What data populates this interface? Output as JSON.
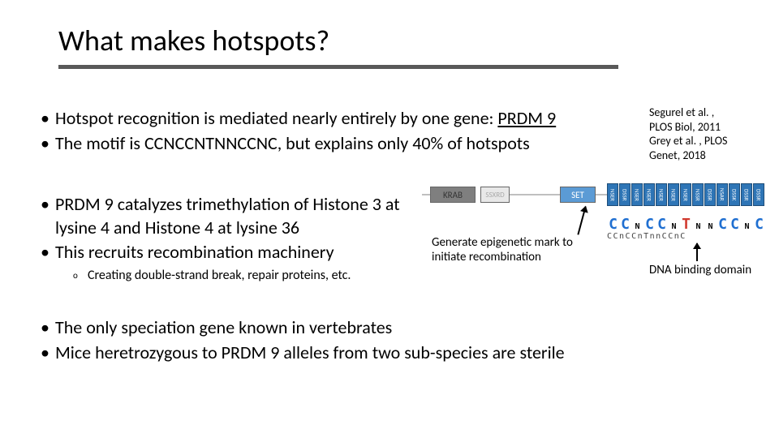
{
  "title": "What makes hotspots?",
  "citations": {
    "line1": "Segurel et al. ,",
    "line2": "PLOS Biol, 2011",
    "line3": "Grey et al. , PLOS",
    "line4": "Genet, 2018"
  },
  "section1": {
    "b1_pre": "Hotspot recognition is mediated nearly entirely by one gene: ",
    "b1_gene": "PRDM 9",
    "b2": "The motif is CCNCCNTNNCCNC, but explains only 40% of hotspots"
  },
  "section2": {
    "b1": "PRDM 9 catalyzes trimethylation of Histone 3 at lysine 4 and Histone 4 at lysine 36",
    "b2": "This recruits recombination machinery",
    "sub1": "Creating double-strand break, repair proteins, etc."
  },
  "diagram": {
    "krab": "KRAB",
    "ssxrd": "SSXRD",
    "set": "SET",
    "zf_labels": [
      "NSER",
      "DSSR",
      "NSER",
      "NSER",
      "NSER",
      "NSER",
      "NSER",
      "NSSR",
      "DSSR",
      "NSAR",
      "DSSK",
      "DSSR",
      "DSSR"
    ],
    "logo_letters": [
      "C",
      "C",
      "n",
      "C",
      "C",
      "n",
      "T",
      "n",
      "n",
      "C",
      "C",
      "n",
      "C"
    ],
    "motif_under": "CCnCCnTnnCCnC",
    "colors": {
      "krab_bg": "#7f7f7f",
      "set_bg": "#5b9bd5",
      "zf_bg": "#2e75b6",
      "zf_border": "#1f4e79",
      "underline": "#595959"
    }
  },
  "annot1": "Generate epigenetic mark to initiate recombination",
  "annot2": "DNA binding domain",
  "section3": {
    "b1": "The only speciation gene known in vertebrates",
    "b2": "Mice heretrozygous to PRDM 9 alleles from two sub-species are sterile"
  }
}
